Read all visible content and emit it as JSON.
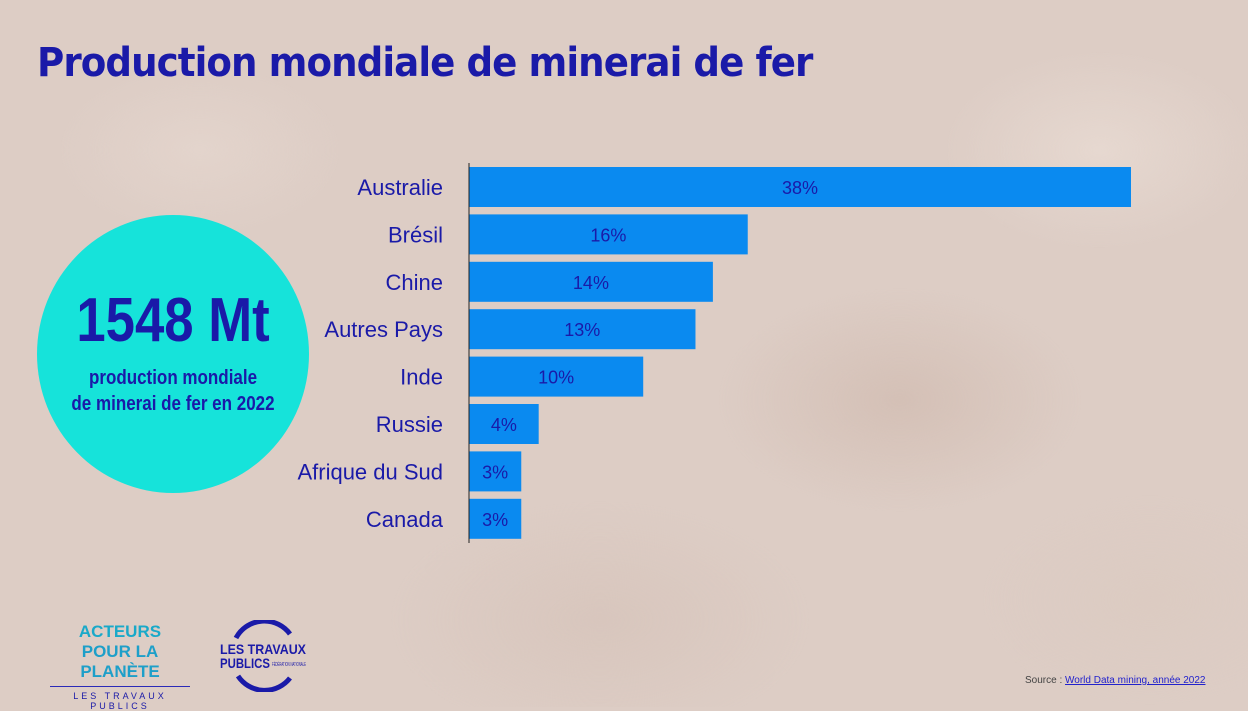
{
  "title": "Production mondiale de minerai de fer",
  "highlight": {
    "value": "1548 Mt",
    "caption_line1": "production mondiale",
    "caption_line2": "de minerai de fer en 2022"
  },
  "chart_data": {
    "type": "bar",
    "orientation": "horizontal",
    "categories": [
      "Australie",
      "Brésil",
      "Chine",
      "Autres Pays",
      "Inde",
      "Russie",
      "Afrique du Sud",
      "Canada"
    ],
    "values": [
      38,
      16,
      14,
      13,
      10,
      4,
      3,
      3
    ],
    "labels": [
      "38%",
      "16%",
      "14%",
      "13%",
      "10%",
      "4%",
      "3%",
      "3%"
    ],
    "unit": "%",
    "xlim": [
      0,
      38
    ],
    "bar_color": "#0a8af0",
    "label_color": "#1a1aa8"
  },
  "source": {
    "prefix": "Source : ",
    "link": "World Data  mining, année 2022 "
  },
  "logos": {
    "acteurs": {
      "line1": "ACTEURS",
      "line2": "POUR LA PLANÈTE",
      "line3": "LES TRAVAUX PUBLICS"
    },
    "fntp": {
      "line1": "LES TRAVAUX",
      "line2": "PUBLICS",
      "line3": "FÉDÉRATION NATIONALE"
    }
  }
}
